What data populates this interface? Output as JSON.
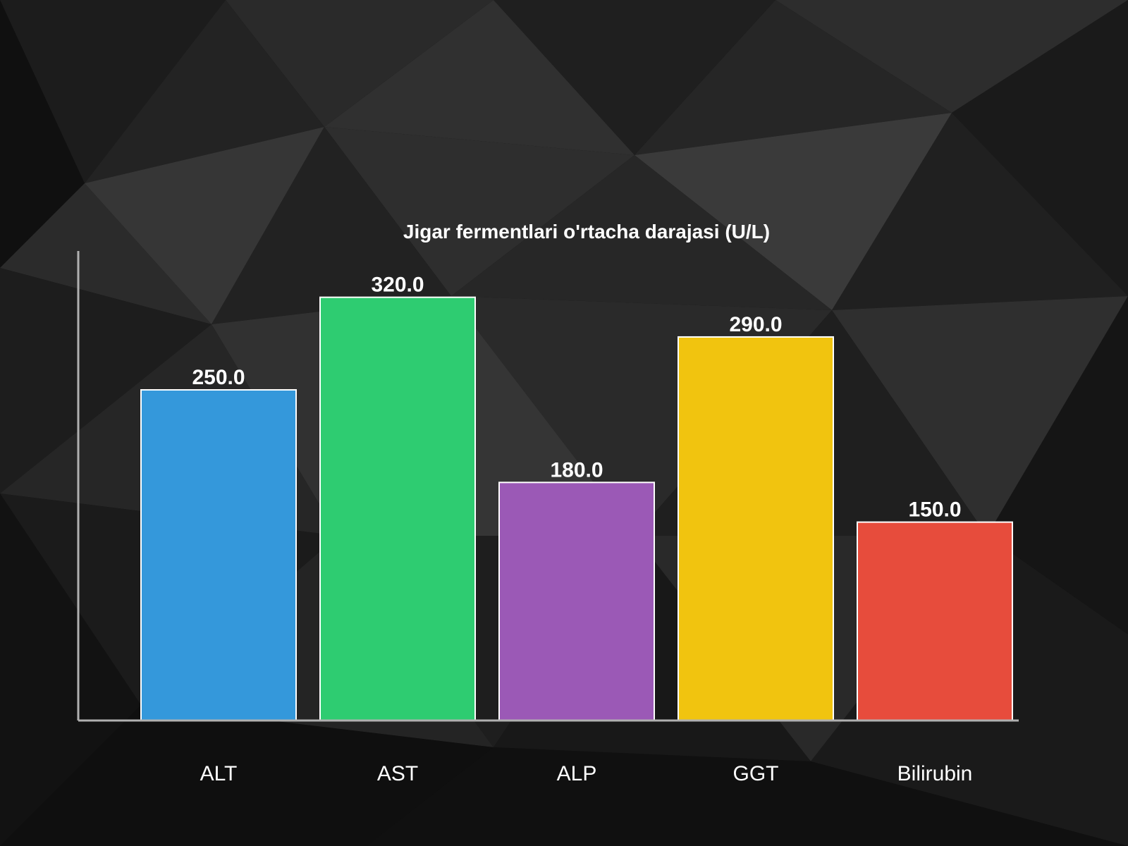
{
  "chart_data": {
    "type": "bar",
    "title": "Jigar fermentlari o'rtacha darajasi (U/L)",
    "xlabel": "",
    "ylabel": "",
    "categories": [
      "ALT",
      "AST",
      "ALP",
      "GGT",
      "Bilirubin"
    ],
    "values": [
      250.0,
      320.0,
      180.0,
      290.0,
      150.0
    ],
    "value_labels": [
      "250.0",
      "320.0",
      "180.0",
      "290.0",
      "150.0"
    ],
    "colors": [
      "#3498db",
      "#2ecc71",
      "#9b59b6",
      "#f1c40f",
      "#e74c3c"
    ],
    "ylim": [
      0,
      355
    ],
    "grid": false,
    "legend": "none"
  },
  "theme": {
    "background": "#111111",
    "bar_edge": "#ffffff",
    "axis_color": "#b0b0b0",
    "text_color": "#ffffff"
  }
}
